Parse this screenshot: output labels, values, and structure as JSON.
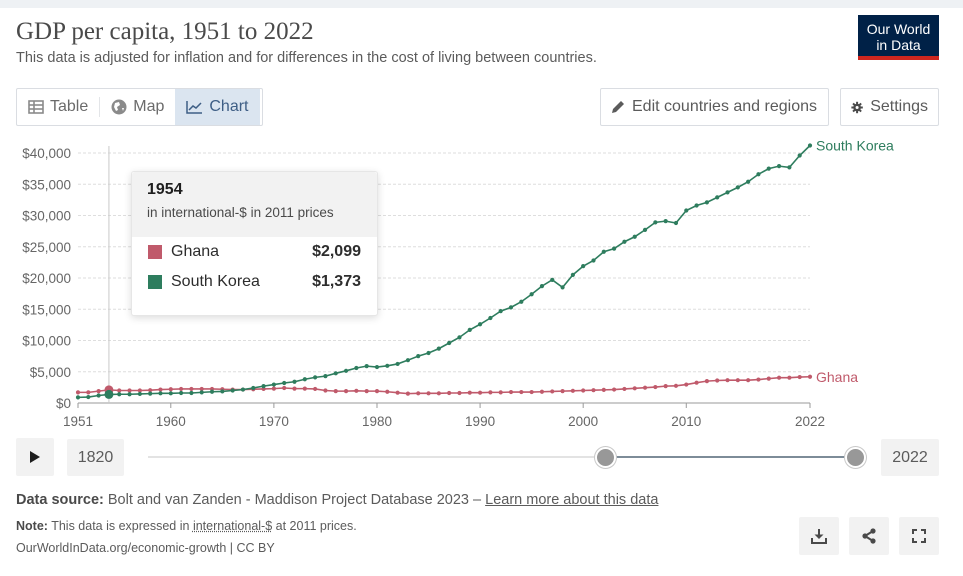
{
  "header": {
    "title": "GDP per capita, 1951 to 2022",
    "subtitle": "This data is adjusted for inflation and for differences in the cost of living between countries.",
    "logo_line1": "Our World",
    "logo_line2": "in Data"
  },
  "tabs": [
    {
      "label": "Table",
      "icon": "table-icon",
      "active": false
    },
    {
      "label": "Map",
      "icon": "globe-icon",
      "active": false
    },
    {
      "label": "Chart",
      "icon": "line-chart-icon",
      "active": true
    }
  ],
  "toolbar": {
    "edit_label": "Edit countries and regions",
    "settings_label": "Settings"
  },
  "tooltip": {
    "year": "1954",
    "unit": "in international-$ in 2011 prices",
    "rows": [
      {
        "name": "Ghana",
        "value": "$2,099",
        "color": "#c05a6b"
      },
      {
        "name": "South Korea",
        "value": "$1,373",
        "color": "#2e7d5e"
      }
    ]
  },
  "timeline": {
    "start_label": "1820",
    "end_label": "2022",
    "start_year": 1951,
    "end_year": 2022
  },
  "footer": {
    "source_label": "Data source:",
    "source_text": "Bolt and van Zanden - Maddison Project Database 2023 –",
    "source_link": "Learn more about this data",
    "note_label": "Note:",
    "note_text_pre": "This data is expressed in",
    "note_link": "international-$",
    "note_text_post": "at 2011 prices.",
    "credit": "OurWorldInData.org/economic-growth | CC BY"
  },
  "chart_data": {
    "type": "line",
    "title": "GDP per capita, 1951 to 2022",
    "ylim": [
      0,
      40000
    ],
    "xlim": [
      1951,
      2022
    ],
    "y_ticks": [
      0,
      5000,
      10000,
      15000,
      20000,
      25000,
      30000,
      35000,
      40000
    ],
    "y_tick_labels": [
      "$0",
      "$5,000",
      "$10,000",
      "$15,000",
      "$20,000",
      "$25,000",
      "$30,000",
      "$35,000",
      "$40,000"
    ],
    "x_ticks": [
      1951,
      1960,
      1970,
      1980,
      1990,
      2000,
      2010,
      2022
    ],
    "x_tick_labels": [
      "1951",
      "1960",
      "1970",
      "1980",
      "1990",
      "2000",
      "2010",
      "2022"
    ],
    "grid": true,
    "hover_year": 1954,
    "series": [
      {
        "name": "Ghana",
        "color": "#c05a6b",
        "x": [
          1951,
          1952,
          1953,
          1954,
          1955,
          1956,
          1957,
          1958,
          1959,
          1960,
          1961,
          1962,
          1963,
          1964,
          1965,
          1966,
          1967,
          1968,
          1969,
          1970,
          1971,
          1972,
          1973,
          1974,
          1975,
          1976,
          1977,
          1978,
          1979,
          1980,
          1981,
          1982,
          1983,
          1984,
          1985,
          1986,
          1987,
          1988,
          1989,
          1990,
          1991,
          1992,
          1993,
          1994,
          1995,
          1996,
          1997,
          1998,
          1999,
          2000,
          2001,
          2002,
          2003,
          2004,
          2005,
          2006,
          2007,
          2008,
          2009,
          2010,
          2011,
          2012,
          2013,
          2014,
          2015,
          2016,
          2017,
          2018,
          2019,
          2020,
          2021,
          2022
        ],
        "y": [
          1700,
          1700,
          1900,
          2099,
          2000,
          2000,
          2000,
          2050,
          2150,
          2200,
          2250,
          2250,
          2250,
          2250,
          2200,
          2150,
          2150,
          2200,
          2250,
          2300,
          2400,
          2300,
          2300,
          2250,
          2000,
          1900,
          1900,
          1950,
          1900,
          1900,
          1800,
          1650,
          1500,
          1550,
          1550,
          1550,
          1600,
          1600,
          1650,
          1650,
          1700,
          1700,
          1750,
          1750,
          1750,
          1800,
          1850,
          1900,
          1950,
          2000,
          2050,
          2100,
          2150,
          2250,
          2350,
          2450,
          2550,
          2700,
          2750,
          2950,
          3250,
          3500,
          3600,
          3650,
          3650,
          3650,
          3750,
          3900,
          4050,
          4050,
          4150,
          4200
        ]
      },
      {
        "name": "South Korea",
        "color": "#2e7d5e",
        "x": [
          1951,
          1952,
          1953,
          1954,
          1955,
          1956,
          1957,
          1958,
          1959,
          1960,
          1961,
          1962,
          1963,
          1964,
          1965,
          1966,
          1967,
          1968,
          1969,
          1970,
          1971,
          1972,
          1973,
          1974,
          1975,
          1976,
          1977,
          1978,
          1979,
          1980,
          1981,
          1982,
          1983,
          1984,
          1985,
          1986,
          1987,
          1988,
          1989,
          1990,
          1991,
          1992,
          1993,
          1994,
          1995,
          1996,
          1997,
          1998,
          1999,
          2000,
          2001,
          2002,
          2003,
          2004,
          2005,
          2006,
          2007,
          2008,
          2009,
          2010,
          2011,
          2012,
          2013,
          2014,
          2015,
          2016,
          2017,
          2018,
          2019,
          2020,
          2021,
          2022
        ],
        "y": [
          900,
          950,
          1200,
          1373,
          1400,
          1400,
          1450,
          1500,
          1550,
          1550,
          1600,
          1600,
          1700,
          1800,
          1850,
          2000,
          2150,
          2400,
          2700,
          2950,
          3200,
          3400,
          3800,
          4100,
          4300,
          4750,
          5150,
          5600,
          5900,
          5750,
          5950,
          6250,
          6850,
          7500,
          8000,
          8700,
          9600,
          10500,
          11700,
          12600,
          13600,
          14700,
          15300,
          16200,
          17400,
          18700,
          19700,
          18500,
          20500,
          21900,
          22800,
          24200,
          24700,
          25800,
          26600,
          27700,
          28900,
          29100,
          28800,
          30800,
          31600,
          32100,
          32900,
          33700,
          34500,
          35400,
          36600,
          37500,
          37900,
          37700,
          39600,
          41200
        ]
      }
    ]
  }
}
